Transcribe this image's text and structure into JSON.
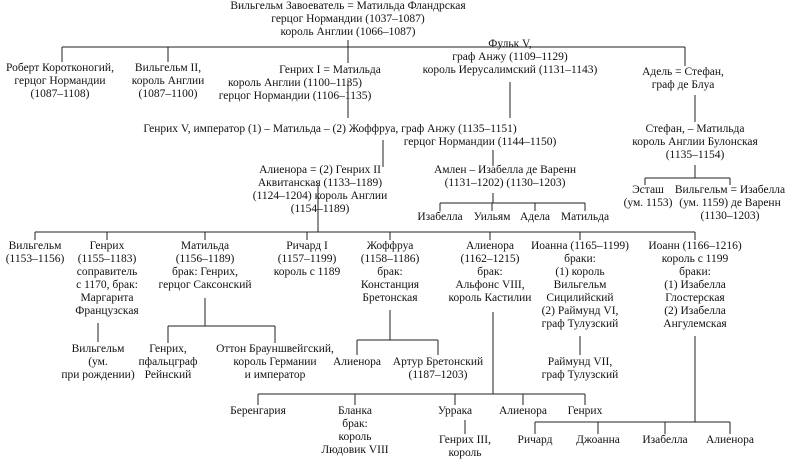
{
  "nodes": [
    {
      "lines": [
        "Вильгельм Завоеватель = Матильда Фландрская",
        "герцог Нормандии (1037–1087)",
        "король Англии (1066–1087)"
      ]
    },
    {
      "lines": [
        "Роберт Коротконогий,",
        "герцог Нормандии",
        "(1087–1108)"
      ]
    },
    {
      "lines": [
        "Вильгельм II,",
        "король Англии",
        "(1087–1100)"
      ]
    },
    {
      "lines": [
        "Генрих I = Матильда",
        "король Англии (1100–1135)",
        "герцог Нормандии (1106–1135)"
      ]
    },
    {
      "lines": [
        "Фульк V,",
        "граф Анжу (1109–1129)",
        "король Иерусалимский (1131–1143)"
      ]
    },
    {
      "lines": [
        "Адель = Стефан,",
        "граф де Блуа"
      ]
    },
    {
      "lines": [
        "Генрих V, император (1) – Матильда – (2) Жоффруа, граф Анжу (1135–1151)",
        "герцог Нормандии (1144–1150)"
      ]
    },
    {
      "lines": [
        "Стефан, – Матильда",
        "король Англии Булонская",
        "(1135–1154)"
      ]
    },
    {
      "lines": [
        "Алиенора = (2) Генрих II",
        "Аквитанская (1133–1189)",
        "(1124–1204) король Англии",
        "(1154–1189)"
      ]
    },
    {
      "lines": [
        "Амлен – Изабелла де Варенн",
        "(1131–1202) (1130–1203)"
      ]
    },
    {
      "lines": [
        "Эсташ",
        "(ум. 1153)"
      ]
    },
    {
      "lines": [
        "Вильгельм = Изабелла",
        "(ум. 1159) де Варенн",
        "(1130–1203)"
      ]
    },
    {
      "lines": [
        "Изабелла"
      ]
    },
    {
      "lines": [
        "Уильям"
      ]
    },
    {
      "lines": [
        "Адела"
      ]
    },
    {
      "lines": [
        "Матильда"
      ]
    },
    {
      "lines": [
        "Вильгельм",
        "(1153–1156)"
      ]
    },
    {
      "lines": [
        "Генрих",
        "(1155–1183)",
        "соправитель",
        "с 1170, брак:",
        "Маргарита",
        "Французская"
      ]
    },
    {
      "lines": [
        "Матильда",
        "(1156–1189)",
        "брак: Генрих,",
        "герцог Саксонский"
      ]
    },
    {
      "lines": [
        "Ричард I",
        "(1157–1199)",
        "король с 1189"
      ]
    },
    {
      "lines": [
        "Жоффруа",
        "(1158–1186)",
        "брак:",
        "Констанция",
        "Бретонская"
      ]
    },
    {
      "lines": [
        "Алиенора",
        "(1162–1215)",
        "брак:",
        "Альфонс VIII,",
        "король Кастилии"
      ]
    },
    {
      "lines": [
        "Иоанна (1165–1199)",
        "браки:",
        "(1) король",
        "Вильгельм",
        "Сицилийский",
        "(2) Раймунд VI,",
        "граф Тулузский"
      ]
    },
    {
      "lines": [
        "Иоанн (1166–1216)",
        "король с 1199",
        "браки:",
        "(1) Изабелла",
        "Глостерская",
        "(2) Изабелла",
        "Ангулемская"
      ]
    },
    {
      "lines": [
        "Вильгельм",
        "(ум.",
        "при рождении)"
      ]
    },
    {
      "lines": [
        "Генрих,",
        "пфальцграф",
        "Рейнский"
      ]
    },
    {
      "lines": [
        "Оттон Брауншвейгский,",
        "король Германии",
        "и император"
      ]
    },
    {
      "lines": [
        "Алиенора"
      ]
    },
    {
      "lines": [
        "Артур Бретонский",
        "(1187–1203)"
      ]
    },
    {
      "lines": [
        "Раймунд VII,",
        "граф Тулузский"
      ]
    },
    {
      "lines": [
        "Беренгария"
      ]
    },
    {
      "lines": [
        "Бланка",
        "брак:",
        "король",
        "Людовик VIII"
      ]
    },
    {
      "lines": [
        "Уррака"
      ]
    },
    {
      "lines": [
        "Алиенора"
      ]
    },
    {
      "lines": [
        "Генрих"
      ]
    },
    {
      "lines": [
        "Генрих III,",
        "король"
      ]
    },
    {
      "lines": [
        "Ричард"
      ]
    },
    {
      "lines": [
        "Джоанна"
      ]
    },
    {
      "lines": [
        "Изабелла"
      ]
    },
    {
      "lines": [
        "Алиенора"
      ]
    }
  ]
}
